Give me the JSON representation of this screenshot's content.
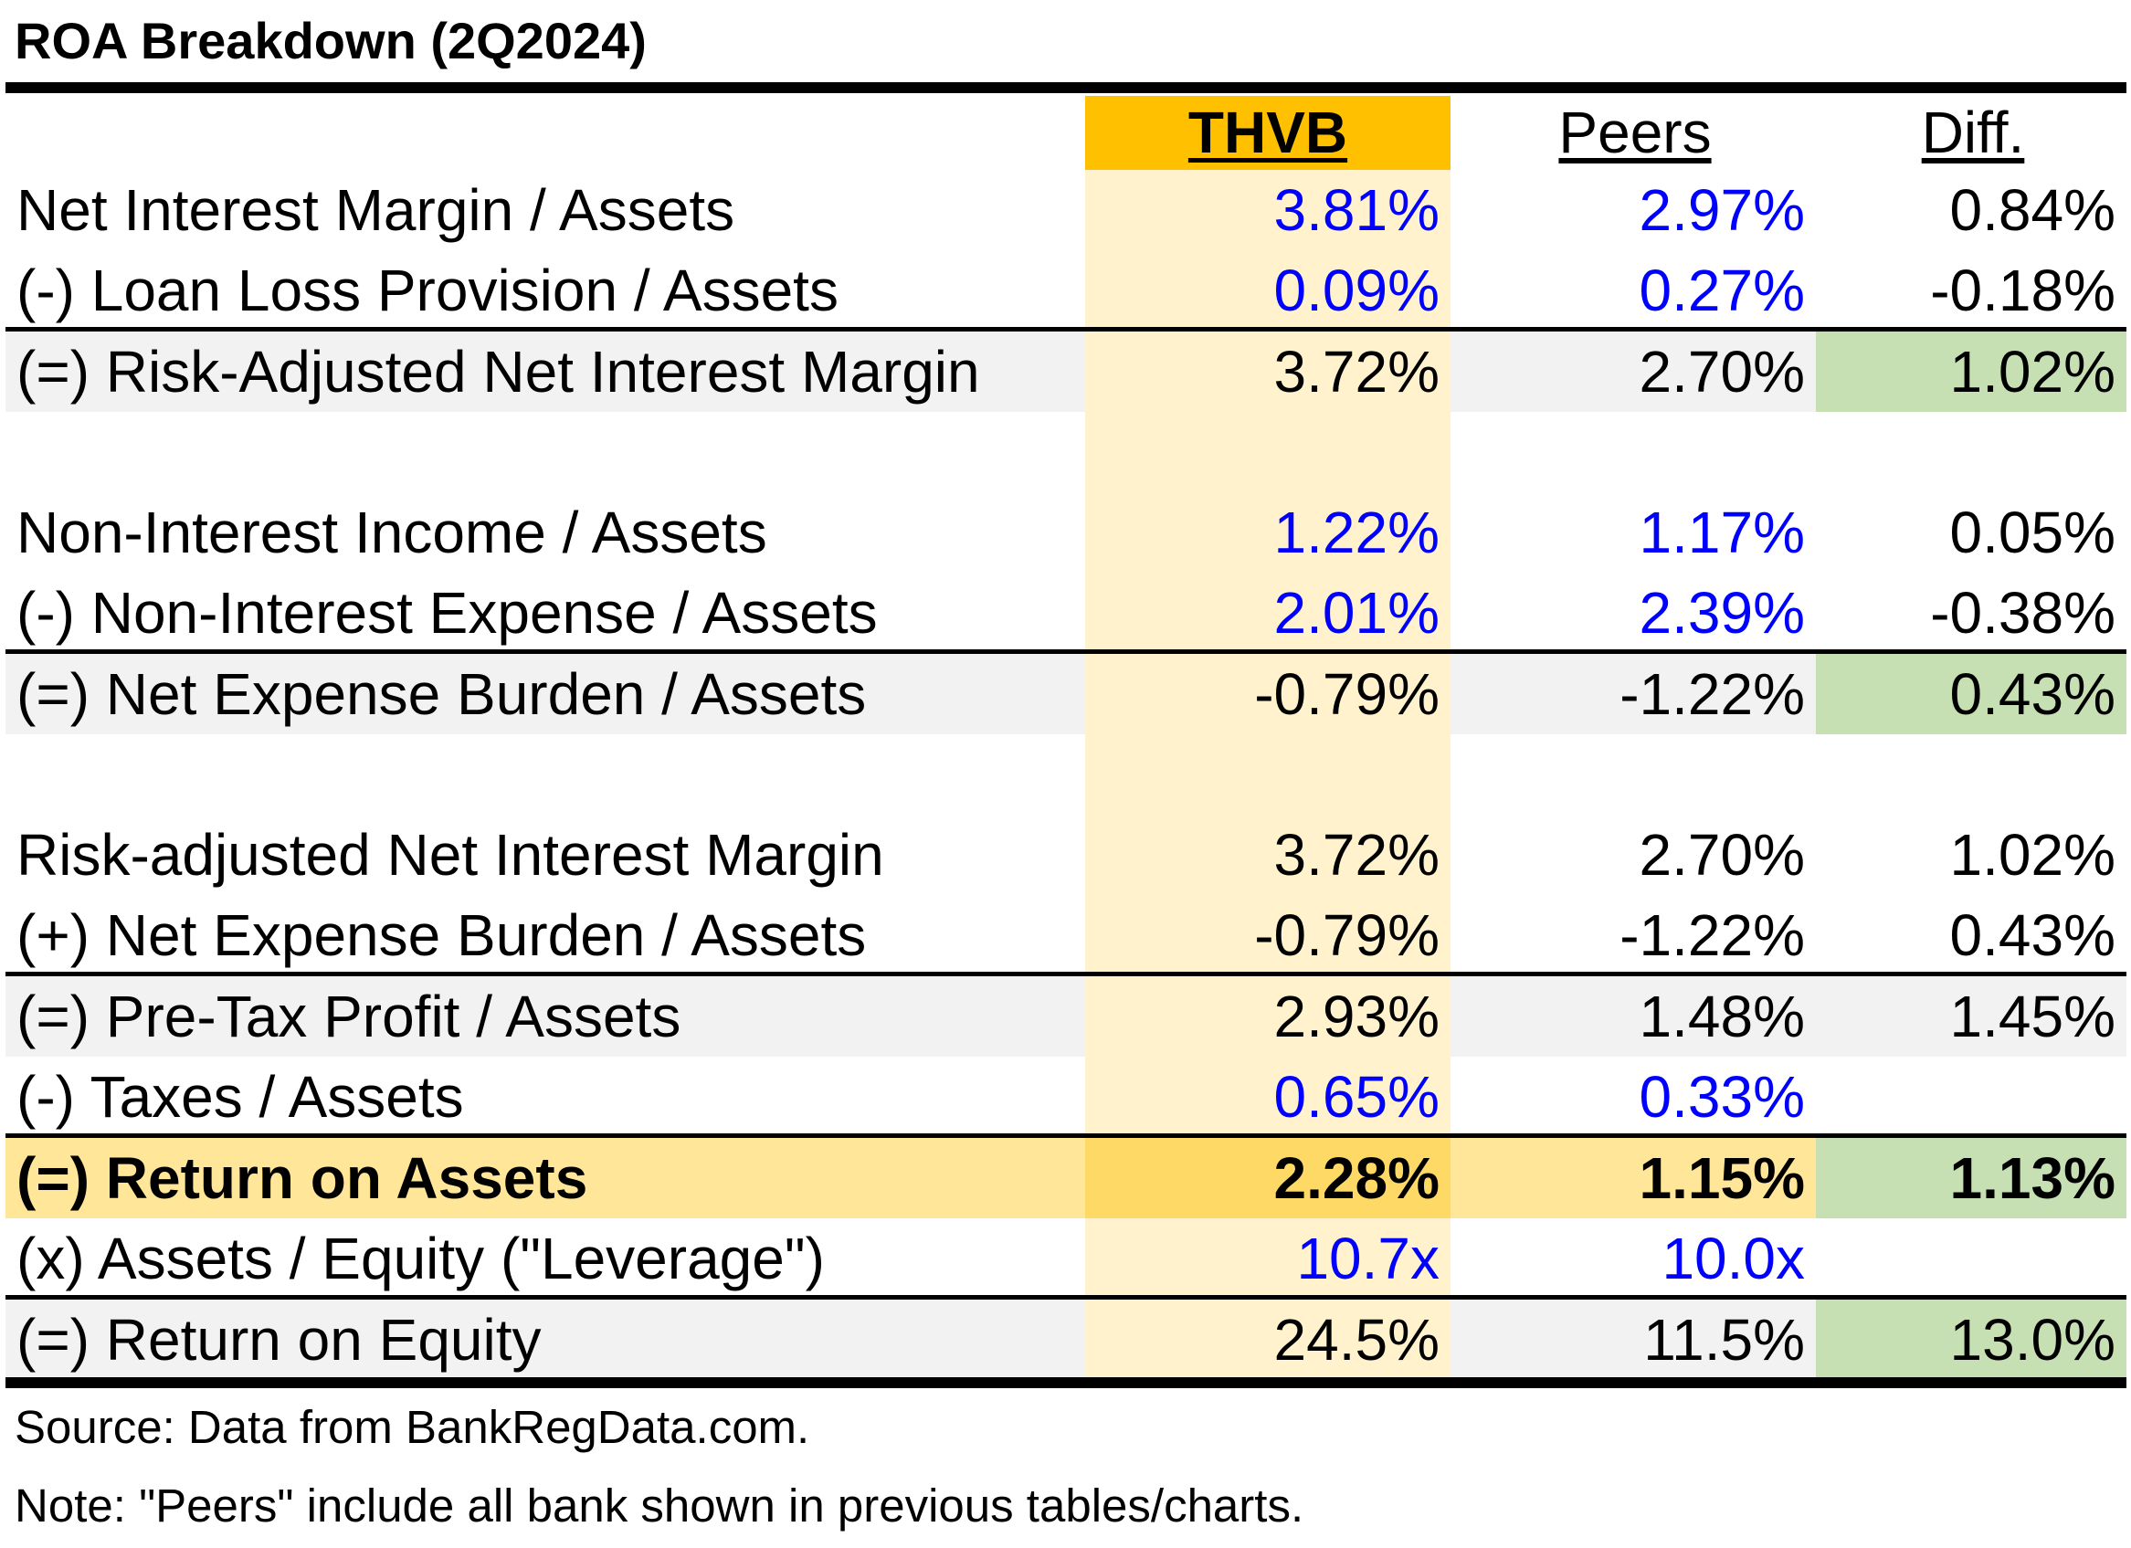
{
  "title": "ROA Breakdown (2Q2024)",
  "columns": {
    "thvb": "THVB",
    "peers": "Peers",
    "diff": "Diff."
  },
  "rows": [
    {
      "label": "Net Interest Margin / Assets",
      "thvb": "3.81%",
      "peers": "2.97%",
      "diff": "0.84%"
    },
    {
      "label": "(-) Loan Loss Provision / Assets",
      "thvb": "0.09%",
      "peers": "0.27%",
      "diff": "-0.18%"
    },
    {
      "label": "(=) Risk-Adjusted Net Interest Margin",
      "thvb": "3.72%",
      "peers": "2.70%",
      "diff": "1.02%"
    },
    {
      "label": "Non-Interest Income / Assets",
      "thvb": "1.22%",
      "peers": "1.17%",
      "diff": "0.05%"
    },
    {
      "label": "(-) Non-Interest Expense / Assets",
      "thvb": "2.01%",
      "peers": "2.39%",
      "diff": "-0.38%"
    },
    {
      "label": "(=) Net Expense Burden / Assets",
      "thvb": "-0.79%",
      "peers": "-1.22%",
      "diff": "0.43%"
    },
    {
      "label": "Risk-adjusted Net Interest Margin",
      "thvb": "3.72%",
      "peers": "2.70%",
      "diff": "1.02%"
    },
    {
      "label": "(+) Net Expense Burden / Assets",
      "thvb": "-0.79%",
      "peers": "-1.22%",
      "diff": "0.43%"
    },
    {
      "label": "(=) Pre-Tax Profit / Assets",
      "thvb": "2.93%",
      "peers": "1.48%",
      "diff": "1.45%"
    },
    {
      "label": "(-) Taxes / Assets",
      "thvb": "0.65%",
      "peers": "0.33%",
      "diff": ""
    },
    {
      "label": "(=) Return on Assets",
      "thvb": "2.28%",
      "peers": "1.15%",
      "diff": "1.13%"
    },
    {
      "label": "(x) Assets / Equity (\"Leverage\")",
      "thvb": "10.7x",
      "peers": "10.0x",
      "diff": ""
    },
    {
      "label": "(=) Return on Equity",
      "thvb": "24.5%",
      "peers": "11.5%",
      "diff": "13.0%"
    }
  ],
  "footnotes": {
    "source": "Source: Data from BankRegData.com.",
    "note": "Note: \"Peers\" include all bank shown in previous tables/charts."
  },
  "colors": {
    "thvb_header": "#ffc000",
    "thvb_column": "#fff2cc",
    "roa_row": "#ffe699",
    "roa_thvb_cell": "#ffd966",
    "diff_highlight": "#c6e0b4",
    "subtotal_row": "#f2f2f2",
    "input_values": "#0000ff"
  }
}
